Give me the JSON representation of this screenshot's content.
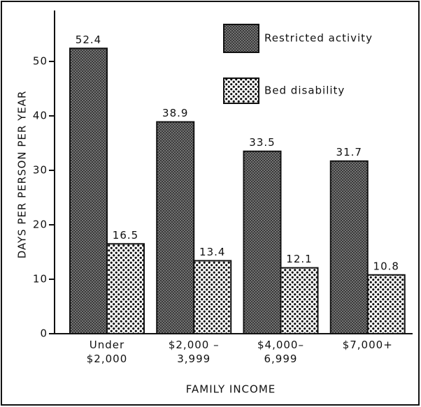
{
  "chart_data": {
    "type": "bar",
    "categories": [
      "Under\n$2,000",
      "$2,000 –\n3,999",
      "$4,000–\n6,999",
      "$7,000+"
    ],
    "series": [
      {
        "name": "Restricted activity",
        "color": "#555555",
        "values": [
          52.4,
          38.9,
          33.5,
          31.7
        ]
      },
      {
        "name": "Bed disability",
        "color": "#ffffff",
        "values": [
          16.5,
          13.4,
          12.1,
          10.8
        ]
      }
    ],
    "ylabel": "DAYS PER PERSON PER YEAR",
    "xlabel": "FAMILY INCOME",
    "ylim": [
      0,
      60
    ],
    "yticks": [
      0,
      10,
      20,
      30,
      40,
      50
    ],
    "legend": "top-right"
  }
}
